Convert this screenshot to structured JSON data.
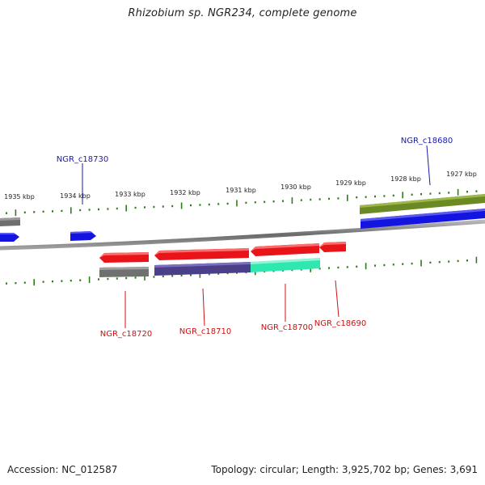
{
  "title": "Rhizobium sp. NGR234, complete genome",
  "footer": {
    "accession": "Accession: NC_012587",
    "summary": "Topology: circular; Length: 3,925,702 bp; Genes: 3,691"
  },
  "colors": {
    "backbone": "#8a8a8a",
    "tick": "#2e7d1a",
    "top_label": "#1a1aa8",
    "bottom_label": "#cc1111",
    "gene_red": "#e8141a",
    "gene_blue": "#1414e0",
    "gene_gray": "#707070",
    "gene_olive": "#6b8a24",
    "gene_purple": "#4b3f8a",
    "gene_teal": "#2ee8b0"
  },
  "map": {
    "kbp_labels": [
      "1935 kbp",
      "1934 kbp",
      "1933 kbp",
      "1932 kbp",
      "1931 kbp",
      "1930 kbp",
      "1929 kbp",
      "1928 kbp",
      "1927 kbp"
    ],
    "top_genes": [
      "NGR_c18730",
      "NGR_c18680"
    ],
    "bottom_genes": [
      "NGR_c18720",
      "NGR_c18710",
      "NGR_c18700",
      "NGR_c18690"
    ]
  }
}
